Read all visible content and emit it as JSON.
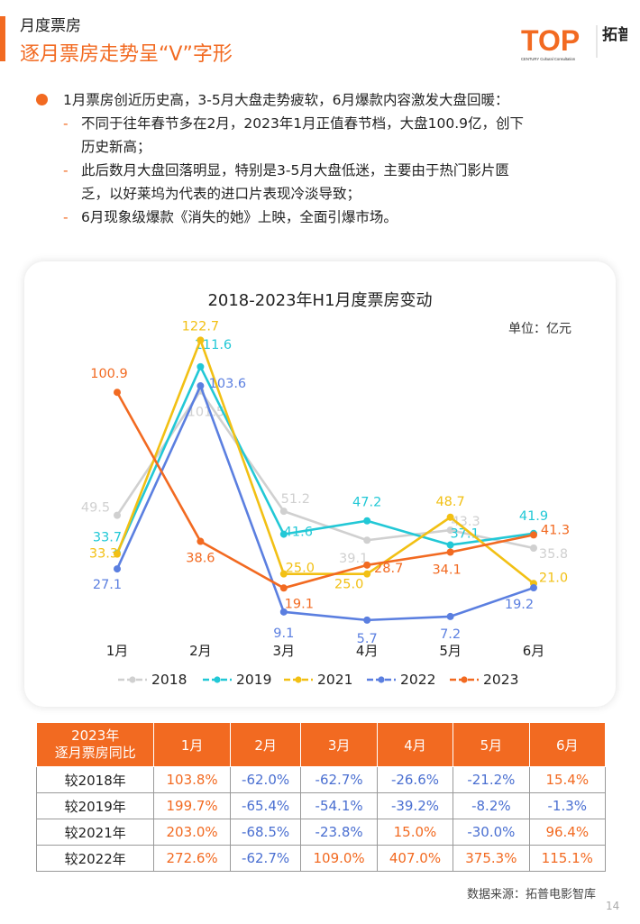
{
  "header": {
    "section": "月度票房",
    "title": "逐月票房走势呈“V”字形"
  },
  "logo": {
    "main": "TOP",
    "cn": "拓普",
    "sub": "CENTURY Cultural Consultation"
  },
  "bullets": {
    "main": "1月票房创近历史高，3-5月大盘走势疲软，6月爆款内容激发大盘回暖：",
    "subs": [
      [
        "不同于往年春节多在2月，2023年1月正值春节档，大盘100.9亿，创下",
        "历史新高；"
      ],
      [
        "此后数月大盘回落明显，特别是3-5月大盘低迷，主要由于热门影片匮",
        "乏，以好莱坞为代表的进口片表现冷淡导致；"
      ],
      [
        "6月现象级爆款《消失的她》上映，全面引爆市场。"
      ]
    ]
  },
  "chart_data": {
    "type": "line",
    "title": "2018-2023年H1月度票房变动",
    "unit": "单位：亿元",
    "categories": [
      "1月",
      "2月",
      "3月",
      "4月",
      "5月",
      "6月"
    ],
    "legend_position": "bottom",
    "series": [
      {
        "name": "2018",
        "color": "#d0d0d0",
        "values": [
          49.5,
          101.5,
          51.2,
          39.1,
          43.3,
          35.8
        ]
      },
      {
        "name": "2019",
        "color": "#22c8d6",
        "values": [
          33.7,
          111.6,
          41.6,
          47.2,
          37.1,
          41.9
        ]
      },
      {
        "name": "2021",
        "color": "#f2c014",
        "values": [
          33.3,
          122.7,
          25.0,
          25.0,
          48.7,
          21.0
        ]
      },
      {
        "name": "2022",
        "color": "#5b7fe0",
        "values": [
          27.1,
          103.6,
          9.1,
          5.7,
          7.2,
          19.2
        ]
      },
      {
        "name": "2023",
        "color": "#f26a21",
        "values": [
          100.9,
          38.6,
          19.1,
          28.7,
          34.1,
          41.3
        ]
      }
    ],
    "ylim": [
      0,
      130
    ],
    "grid": false
  },
  "table": {
    "header_label": [
      "2023年",
      "逐月票房同比"
    ],
    "months": [
      "1月",
      "2月",
      "3月",
      "4月",
      "5月",
      "6月"
    ],
    "rows": [
      {
        "label": "较2018年",
        "values": [
          "103.8%",
          "-62.0%",
          "-62.7%",
          "-26.6%",
          "-21.2%",
          "15.4%"
        ]
      },
      {
        "label": "较2019年",
        "values": [
          "199.7%",
          "-65.4%",
          "-54.1%",
          "-39.2%",
          "-8.2%",
          "-1.3%"
        ]
      },
      {
        "label": "较2021年",
        "values": [
          "203.0%",
          "-68.5%",
          "-23.8%",
          "15.0%",
          "-30.0%",
          "96.4%"
        ]
      },
      {
        "label": "较2022年",
        "values": [
          "272.6%",
          "-62.7%",
          "109.0%",
          "407.0%",
          "375.3%",
          "115.1%"
        ]
      }
    ]
  },
  "footer": {
    "source": "数据来源：拓普电影智库",
    "page": "14"
  }
}
